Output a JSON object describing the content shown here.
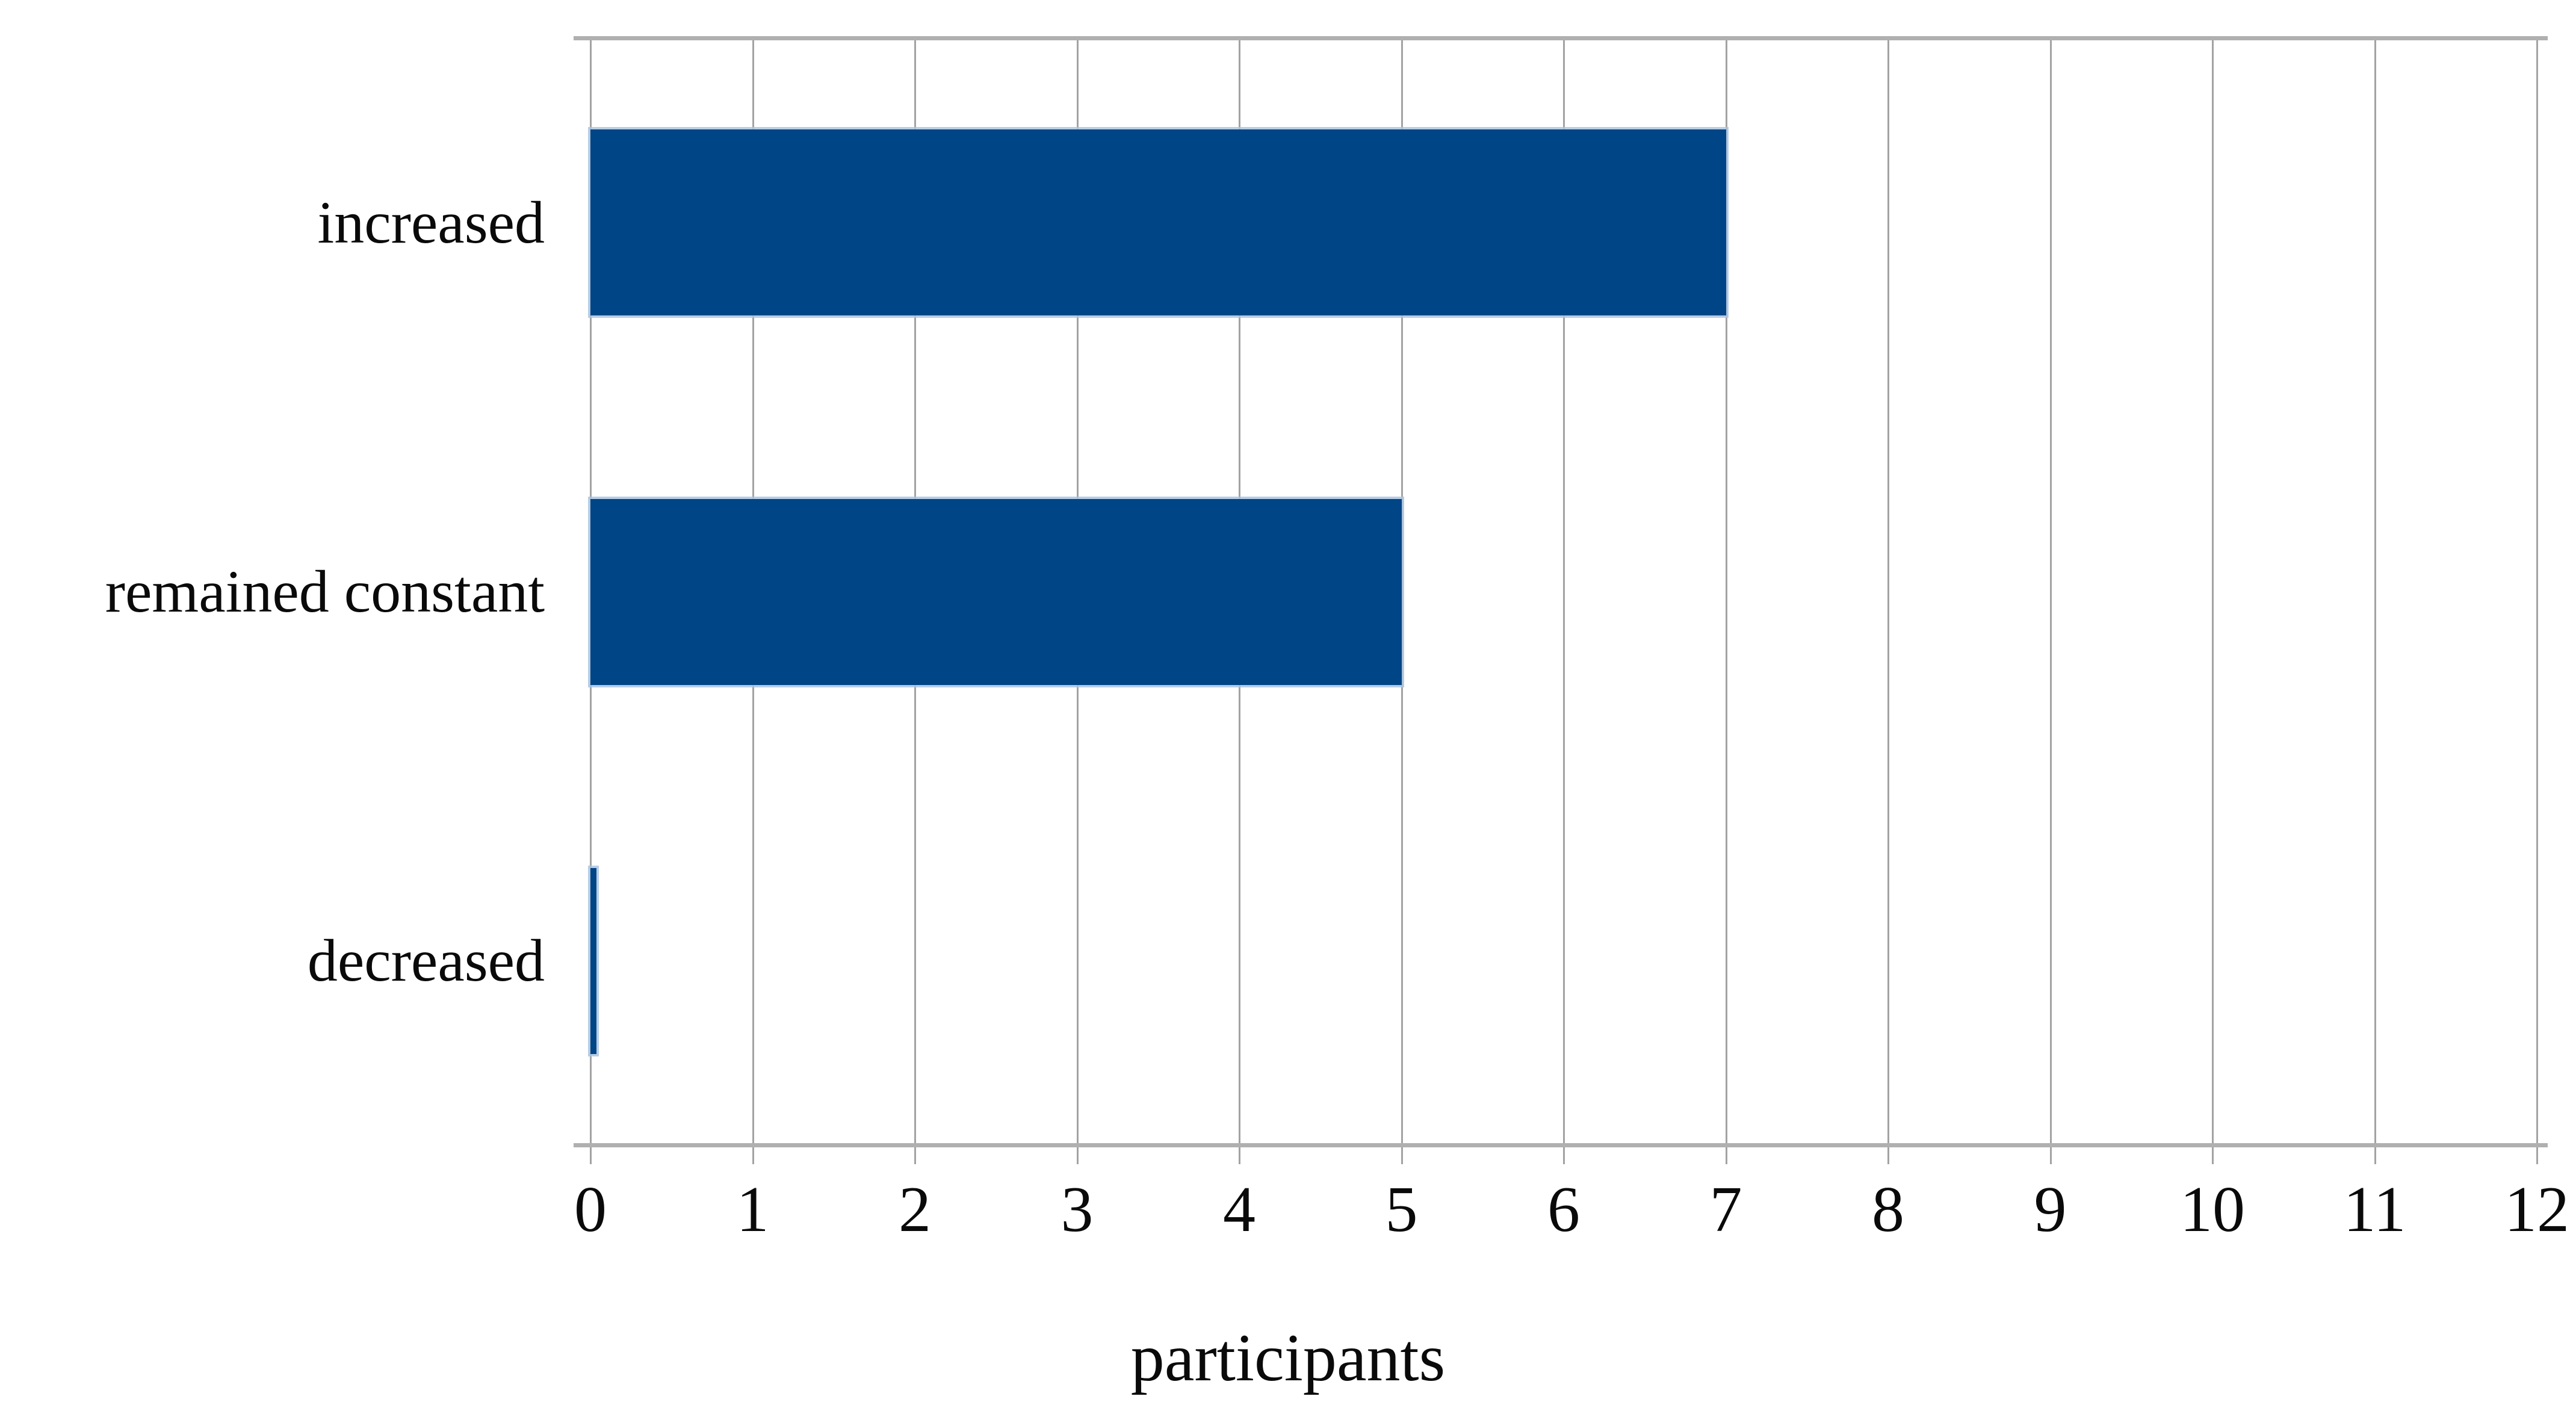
{
  "chart_data": {
    "type": "bar",
    "orientation": "horizontal",
    "title": "",
    "xlabel": "participants",
    "ylabel": "",
    "categories": [
      "increased",
      "remained constant",
      "decreased"
    ],
    "values": [
      7,
      5,
      0
    ],
    "xlim": [
      0,
      12
    ],
    "xticks": [
      0,
      1,
      2,
      3,
      4,
      5,
      6,
      7,
      8,
      9,
      10,
      11,
      12
    ],
    "grid": "vertical-gridlines-on",
    "legend": "none",
    "colors": {
      "bar_fill": "#004586",
      "bar_halo": "#aac4e0",
      "gridline": "#a3a3a3",
      "axis_line": "#b0b0b0",
      "text": "#0a0a0a",
      "background": "#ffffff"
    }
  }
}
